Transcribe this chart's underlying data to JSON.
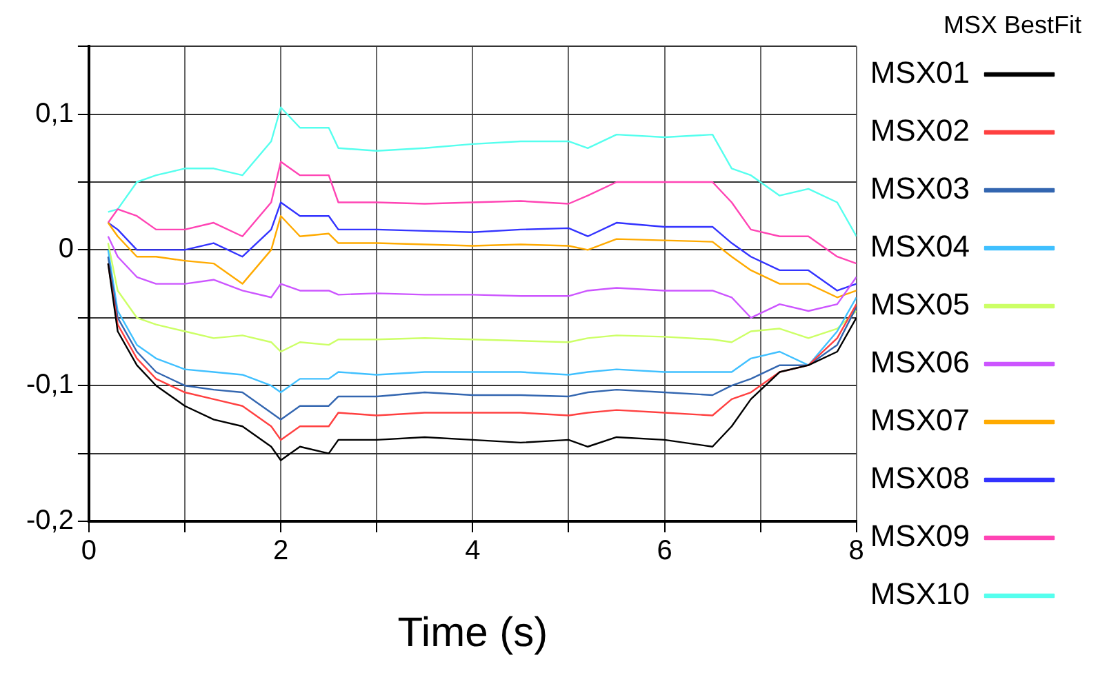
{
  "chart_data": {
    "type": "line",
    "title": "MSX BestFit",
    "xlabel": "Time (s)",
    "x": [
      0.2,
      0.3,
      0.5,
      0.7,
      1.0,
      1.3,
      1.6,
      1.9,
      2.0,
      2.2,
      2.5,
      2.6,
      3,
      3.5,
      4,
      4.5,
      5,
      5.2,
      5.5,
      6,
      6.5,
      6.7,
      6.9,
      7.2,
      7.5,
      7.8,
      8
    ],
    "series": [
      {
        "name": "MSX01",
        "color": "#000000",
        "values": [
          -0.01,
          -0.06,
          -0.085,
          -0.1,
          -0.115,
          -0.125,
          -0.13,
          -0.145,
          -0.155,
          -0.145,
          -0.15,
          -0.14,
          -0.14,
          -0.138,
          -0.14,
          -0.142,
          -0.14,
          -0.145,
          -0.138,
          -0.14,
          -0.145,
          -0.13,
          -0.11,
          -0.09,
          -0.085,
          -0.075,
          -0.05
        ]
      },
      {
        "name": "MSX02",
        "color": "#ff4040",
        "values": [
          -0.01,
          -0.055,
          -0.08,
          -0.095,
          -0.105,
          -0.11,
          -0.115,
          -0.13,
          -0.14,
          -0.13,
          -0.13,
          -0.12,
          -0.122,
          -0.12,
          -0.12,
          -0.12,
          -0.122,
          -0.12,
          -0.118,
          -0.12,
          -0.122,
          -0.11,
          -0.105,
          -0.09,
          -0.085,
          -0.065,
          -0.04
        ]
      },
      {
        "name": "MSX03",
        "color": "#3366b0",
        "values": [
          -0.005,
          -0.05,
          -0.075,
          -0.09,
          -0.1,
          -0.103,
          -0.105,
          -0.12,
          -0.125,
          -0.115,
          -0.115,
          -0.108,
          -0.108,
          -0.105,
          -0.107,
          -0.107,
          -0.108,
          -0.105,
          -0.103,
          -0.105,
          -0.107,
          -0.1,
          -0.095,
          -0.085,
          -0.085,
          -0.07,
          -0.042
        ]
      },
      {
        "name": "MSX04",
        "color": "#40c0ff",
        "values": [
          0,
          -0.045,
          -0.07,
          -0.08,
          -0.088,
          -0.09,
          -0.092,
          -0.1,
          -0.105,
          -0.095,
          -0.095,
          -0.09,
          -0.092,
          -0.09,
          -0.09,
          -0.09,
          -0.092,
          -0.09,
          -0.088,
          -0.09,
          -0.09,
          -0.09,
          -0.08,
          -0.075,
          -0.085,
          -0.06,
          -0.035
        ]
      },
      {
        "name": "MSX05",
        "color": "#ccff66",
        "values": [
          0.005,
          -0.03,
          -0.05,
          -0.055,
          -0.06,
          -0.065,
          -0.063,
          -0.068,
          -0.075,
          -0.068,
          -0.07,
          -0.066,
          -0.066,
          -0.065,
          -0.066,
          -0.067,
          -0.068,
          -0.065,
          -0.063,
          -0.064,
          -0.066,
          -0.068,
          -0.06,
          -0.058,
          -0.065,
          -0.058,
          -0.045
        ]
      },
      {
        "name": "MSX06",
        "color": "#cc55ff",
        "values": [
          0.01,
          -0.005,
          -0.02,
          -0.025,
          -0.025,
          -0.022,
          -0.03,
          -0.035,
          -0.025,
          -0.03,
          -0.03,
          -0.033,
          -0.032,
          -0.033,
          -0.033,
          -0.034,
          -0.034,
          -0.03,
          -0.028,
          -0.03,
          -0.03,
          -0.035,
          -0.05,
          -0.04,
          -0.045,
          -0.04,
          -0.02
        ]
      },
      {
        "name": "MSX07",
        "color": "#ffaa00",
        "values": [
          0.02,
          0.01,
          -0.005,
          -0.005,
          -0.008,
          -0.01,
          -0.025,
          0.0,
          0.025,
          0.01,
          0.012,
          0.005,
          0.005,
          0.004,
          0.003,
          0.004,
          0.003,
          0.0,
          0.008,
          0.007,
          0.006,
          -0.005,
          -0.015,
          -0.025,
          -0.025,
          -0.035,
          -0.03
        ]
      },
      {
        "name": "MSX08",
        "color": "#3333ff",
        "values": [
          0.02,
          0.015,
          0.0,
          0.0,
          0.0,
          0.005,
          -0.005,
          0.015,
          0.035,
          0.025,
          0.025,
          0.015,
          0.015,
          0.014,
          0.013,
          0.015,
          0.016,
          0.01,
          0.02,
          0.017,
          0.017,
          0.005,
          -0.005,
          -0.015,
          -0.015,
          -0.03,
          -0.025
        ]
      },
      {
        "name": "MSX09",
        "color": "#ff44b4",
        "values": [
          0.02,
          0.03,
          0.025,
          0.015,
          0.015,
          0.02,
          0.01,
          0.035,
          0.065,
          0.055,
          0.055,
          0.035,
          0.035,
          0.034,
          0.035,
          0.036,
          0.034,
          0.04,
          0.05,
          0.05,
          0.05,
          0.035,
          0.015,
          0.01,
          0.01,
          -0.005,
          -0.01
        ]
      },
      {
        "name": "MSX10",
        "color": "#55ffee",
        "values": [
          0.028,
          0.03,
          0.05,
          0.055,
          0.06,
          0.06,
          0.055,
          0.08,
          0.105,
          0.09,
          0.09,
          0.075,
          0.073,
          0.075,
          0.078,
          0.08,
          0.08,
          0.075,
          0.085,
          0.083,
          0.085,
          0.06,
          0.055,
          0.04,
          0.045,
          0.035,
          0.01
        ]
      }
    ],
    "xlim": [
      0,
      8
    ],
    "xticks": [
      0,
      {
        "value": 1,
        "label": null
      },
      2,
      {
        "value": 3,
        "label": null
      },
      4,
      {
        "value": 5,
        "label": null
      },
      6,
      {
        "value": 7,
        "label": null
      },
      8
    ],
    "ylim": [
      -0.2,
      0.15
    ],
    "yticks": [
      {
        "value": -0.2,
        "label": "-0,2"
      },
      {
        "value": -0.15,
        "label": null
      },
      {
        "value": -0.1,
        "label": "-0,1"
      },
      {
        "value": -0.05,
        "label": null
      },
      {
        "value": 0,
        "label": "0"
      },
      {
        "value": 0.05,
        "label": null
      },
      {
        "value": 0.1,
        "label": "0,1"
      },
      {
        "value": 0.15,
        "label": null
      }
    ],
    "grid": true,
    "legend": "right",
    "marker": "none",
    "line_style": "solid"
  }
}
